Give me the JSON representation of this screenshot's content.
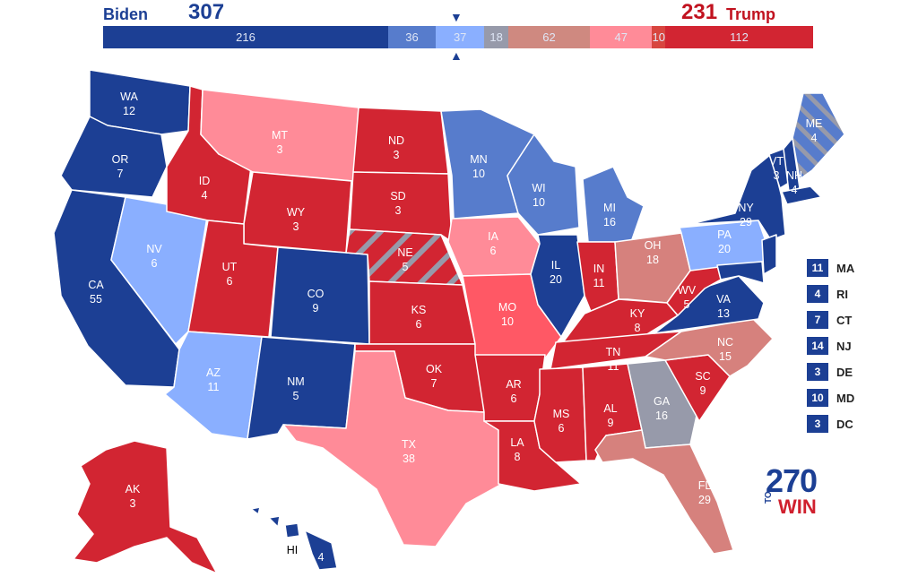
{
  "header": {
    "dem_name": "Biden",
    "dem_votes": "307",
    "rep_votes": "231",
    "rep_name": "Trump"
  },
  "colors": {
    "safe_dem": "#1c3f94",
    "likely_dem": "#577ccc",
    "lean_dem": "#8aafff",
    "tossup": "#979aaa",
    "lean_rep": "#ff8b98",
    "likely_rep": "#d6817d",
    "likely_rep_alt": "#ff5865",
    "safe_rep": "#d22532",
    "bar_likely_rep": "#cf8980",
    "bar_lean_rep": "#ff8b98",
    "bar_tilt_rep": "#d8453f"
  },
  "bar_segments": [
    {
      "label": "216",
      "value": 216,
      "color": "#1c3f94"
    },
    {
      "label": "36",
      "value": 36,
      "color": "#577ccc"
    },
    {
      "label": "37",
      "value": 37,
      "color": "#8aafff"
    },
    {
      "label": "18",
      "value": 18,
      "color": "#979aaa"
    },
    {
      "label": "62",
      "value": 62,
      "color": "#cf8980"
    },
    {
      "label": "47",
      "value": 47,
      "color": "#ff8b98"
    },
    {
      "label": "10",
      "value": 10,
      "color": "#d8453f"
    },
    {
      "label": "112",
      "value": 112,
      "color": "#d22532"
    }
  ],
  "states": {
    "WA": {
      "abbr": "WA",
      "ev": "12",
      "color": "#1c3f94"
    },
    "OR": {
      "abbr": "OR",
      "ev": "7",
      "color": "#1c3f94"
    },
    "CA": {
      "abbr": "CA",
      "ev": "55",
      "color": "#1c3f94"
    },
    "NV": {
      "abbr": "NV",
      "ev": "6",
      "color": "#8aafff"
    },
    "ID": {
      "abbr": "ID",
      "ev": "4",
      "color": "#d22532"
    },
    "MT": {
      "abbr": "MT",
      "ev": "3",
      "color": "#ff8b98"
    },
    "WY": {
      "abbr": "WY",
      "ev": "3",
      "color": "#d22532"
    },
    "UT": {
      "abbr": "UT",
      "ev": "6",
      "color": "#d22532"
    },
    "AZ": {
      "abbr": "AZ",
      "ev": "11",
      "color": "#8aafff"
    },
    "CO": {
      "abbr": "CO",
      "ev": "9",
      "color": "#1c3f94"
    },
    "NM": {
      "abbr": "NM",
      "ev": "5",
      "color": "#1c3f94"
    },
    "ND": {
      "abbr": "ND",
      "ev": "3",
      "color": "#d22532"
    },
    "SD": {
      "abbr": "SD",
      "ev": "3",
      "color": "#d22532"
    },
    "NE": {
      "abbr": "NE",
      "ev": "5",
      "color": "#d22532"
    },
    "KS": {
      "abbr": "KS",
      "ev": "6",
      "color": "#d22532"
    },
    "OK": {
      "abbr": "OK",
      "ev": "7",
      "color": "#d22532"
    },
    "TX": {
      "abbr": "TX",
      "ev": "38",
      "color": "#ff8b98"
    },
    "MN": {
      "abbr": "MN",
      "ev": "10",
      "color": "#577ccc"
    },
    "IA": {
      "abbr": "IA",
      "ev": "6",
      "color": "#ff8b98"
    },
    "MO": {
      "abbr": "MO",
      "ev": "10",
      "color": "#ff5865"
    },
    "AR": {
      "abbr": "AR",
      "ev": "6",
      "color": "#d22532"
    },
    "LA": {
      "abbr": "LA",
      "ev": "8",
      "color": "#d22532"
    },
    "WI": {
      "abbr": "WI",
      "ev": "10",
      "color": "#577ccc"
    },
    "IL": {
      "abbr": "IL",
      "ev": "20",
      "color": "#1c3f94"
    },
    "MI": {
      "abbr": "MI",
      "ev": "16",
      "color": "#577ccc"
    },
    "IN": {
      "abbr": "IN",
      "ev": "11",
      "color": "#d22532"
    },
    "OH": {
      "abbr": "OH",
      "ev": "18",
      "color": "#d6817d"
    },
    "KY": {
      "abbr": "KY",
      "ev": "8",
      "color": "#d22532"
    },
    "TN": {
      "abbr": "TN",
      "ev": "11",
      "color": "#d22532"
    },
    "MS": {
      "abbr": "MS",
      "ev": "6",
      "color": "#d22532"
    },
    "AL": {
      "abbr": "AL",
      "ev": "9",
      "color": "#d22532"
    },
    "GA": {
      "abbr": "GA",
      "ev": "16",
      "color": "#979aaa"
    },
    "FL": {
      "abbr": "FL",
      "ev": "29",
      "color": "#d6817d"
    },
    "SC": {
      "abbr": "SC",
      "ev": "9",
      "color": "#d22532"
    },
    "NC": {
      "abbr": "NC",
      "ev": "15",
      "color": "#d6817d"
    },
    "VA": {
      "abbr": "VA",
      "ev": "13",
      "color": "#1c3f94"
    },
    "WV": {
      "abbr": "WV",
      "ev": "5",
      "color": "#d22532"
    },
    "PA": {
      "abbr": "PA",
      "ev": "20",
      "color": "#8aafff"
    },
    "NY": {
      "abbr": "NY",
      "ev": "29",
      "color": "#1c3f94"
    },
    "VT": {
      "abbr": "VT",
      "ev": "3",
      "color": "#1c3f94"
    },
    "NH": {
      "abbr": "NH",
      "ev": "4",
      "color": "#1c3f94"
    },
    "ME": {
      "abbr": "ME",
      "ev": "4",
      "color": "#577ccc"
    },
    "AK": {
      "abbr": "AK",
      "ev": "3",
      "color": "#d22532"
    },
    "HI": {
      "abbr": "HI",
      "ev": "4",
      "color": "#1c3f94"
    }
  },
  "small_states": [
    {
      "abbr": "MA",
      "ev": "11"
    },
    {
      "abbr": "RI",
      "ev": "4"
    },
    {
      "abbr": "CT",
      "ev": "7"
    },
    {
      "abbr": "NJ",
      "ev": "14"
    },
    {
      "abbr": "DE",
      "ev": "3"
    },
    {
      "abbr": "MD",
      "ev": "10"
    },
    {
      "abbr": "DC",
      "ev": "3"
    }
  ],
  "logo": {
    "number": "270",
    "to": "TO",
    "win": "WIN"
  }
}
